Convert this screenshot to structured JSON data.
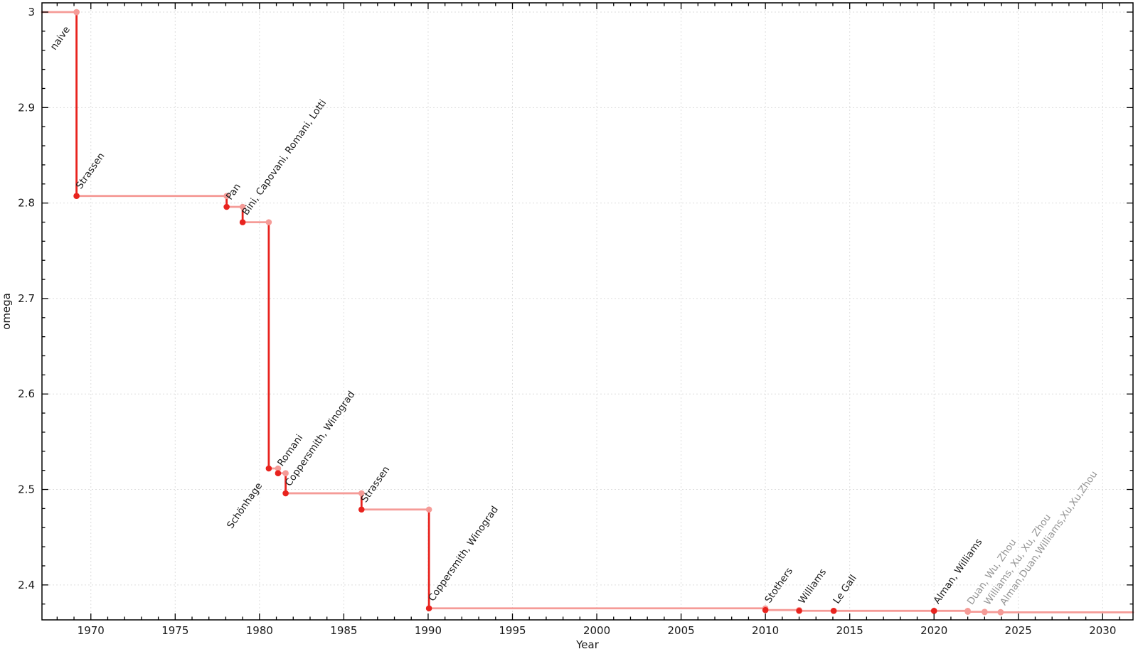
{
  "chart_data": {
    "type": "line",
    "subtype": "step",
    "title": "",
    "xlabel": "Year",
    "ylabel": "omega",
    "xlim": [
      1967.1,
      2031.8
    ],
    "ylim": [
      2.3634,
      3.0097
    ],
    "x_major_ticks": [
      1970,
      1975,
      1980,
      1985,
      1990,
      1995,
      2000,
      2005,
      2010,
      2015,
      2020,
      2025,
      2030
    ],
    "x_minor_step": 1,
    "y_major_ticks": [
      2.4,
      2.5,
      2.6,
      2.7,
      2.8,
      2.9,
      3
    ],
    "y_minor_step": 0.02,
    "grid": true,
    "legend": "none",
    "points": [
      {
        "label": "naive",
        "year": 1969.15,
        "omega": 3.0,
        "confirmed": true,
        "marker": "light",
        "label_side": "below"
      },
      {
        "label": "Strassen",
        "year": 1969.15,
        "omega": 2.8074,
        "confirmed": true,
        "marker": "dark",
        "label_side": "above"
      },
      {
        "label": "Pan",
        "year": 1978.05,
        "omega": 2.796,
        "confirmed": true,
        "marker": "dark",
        "label_side": "above"
      },
      {
        "label": "Bini, Capovani, Romani, Lotti",
        "year": 1979.0,
        "omega": 2.7799,
        "confirmed": true,
        "marker": "dark",
        "label_side": "above"
      },
      {
        "label": "Schönhage",
        "year": 1980.55,
        "omega": 2.522,
        "confirmed": true,
        "marker": "dark",
        "label_side": "below"
      },
      {
        "label": "Romani",
        "year": 1981.1,
        "omega": 2.517,
        "confirmed": true,
        "marker": "dark",
        "label_side": "above"
      },
      {
        "label": "Coppersmith, Winograd",
        "year": 1981.55,
        "omega": 2.496,
        "confirmed": true,
        "marker": "dark",
        "label_side": "above"
      },
      {
        "label": "Strassen",
        "year": 1986.05,
        "omega": 2.479,
        "confirmed": true,
        "marker": "dark",
        "label_side": "above"
      },
      {
        "label": "Coppersmith, Winograd",
        "year": 1990.05,
        "omega": 2.3755,
        "confirmed": true,
        "marker": "dark",
        "label_side": "above"
      },
      {
        "label": "Stothers",
        "year": 2010.0,
        "omega": 2.3737,
        "confirmed": true,
        "marker": "dark",
        "label_side": "above"
      },
      {
        "label": "Williams",
        "year": 2012.0,
        "omega": 2.3729,
        "confirmed": true,
        "marker": "dark",
        "label_side": "above"
      },
      {
        "label": "Le Gall",
        "year": 2014.05,
        "omega": 2.3728639,
        "confirmed": true,
        "marker": "dark",
        "label_side": "above"
      },
      {
        "label": "Alman, Williams",
        "year": 2020.0,
        "omega": 2.3728596,
        "confirmed": true,
        "marker": "dark",
        "label_side": "above"
      },
      {
        "label": "Duan, Wu, Zhou",
        "year": 2022.0,
        "omega": 2.371866,
        "confirmed": false,
        "marker": "light",
        "label_side": "above"
      },
      {
        "label": "Williams, Xu, Xu, Zhou",
        "year": 2023.0,
        "omega": 2.371552,
        "confirmed": false,
        "marker": "light",
        "label_side": "above"
      },
      {
        "label": "Alman,Duan,Williams,Xu,Xu,Zhou",
        "year": 2023.95,
        "omega": 2.371339,
        "confirmed": false,
        "marker": "light",
        "label_side": "above"
      }
    ],
    "colors": {
      "line_dark": "#e8231e",
      "line_light": "#f59b97",
      "marker_dark": "#e8231e",
      "marker_light": "#f59b97",
      "label_dark": "#1a1a1a",
      "label_gray": "#949494",
      "grid": "#dedede",
      "frame": "#000000",
      "tick_text": "#1a1a1a",
      "background": "#ffffff"
    }
  }
}
